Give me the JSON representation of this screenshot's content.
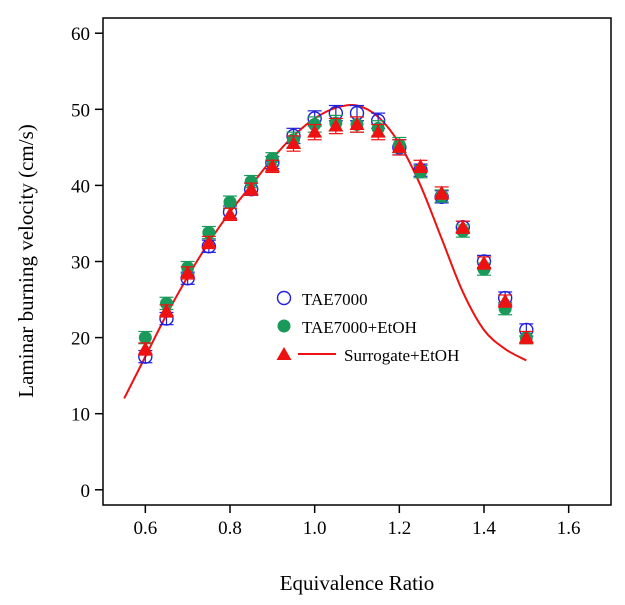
{
  "chart_data": {
    "type": "scatter",
    "title": "",
    "xlabel": "Equivalence Ratio",
    "ylabel": "Laminar burning velocity (cm/s)",
    "xlim": [
      0.5,
      1.7
    ],
    "ylim": [
      -2,
      62
    ],
    "x_ticks": [
      0.6,
      0.8,
      1.0,
      1.2,
      1.4,
      1.6
    ],
    "x_tick_labels": [
      "0.6",
      "0.8",
      "1.0",
      "1.2",
      "1.4",
      "1.6"
    ],
    "y_ticks": [
      0,
      10,
      20,
      30,
      40,
      50,
      60
    ],
    "y_tick_labels": [
      "0",
      "10",
      "20",
      "30",
      "40",
      "50",
      "60"
    ],
    "grid": false,
    "legend_position": "center",
    "series": [
      {
        "name": "TAE7000",
        "marker": "open-circle",
        "color": "#1f1fdf",
        "x": [
          0.6,
          0.65,
          0.7,
          0.75,
          0.8,
          0.85,
          0.9,
          0.95,
          1.0,
          1.05,
          1.1,
          1.15,
          1.2,
          1.25,
          1.3,
          1.35,
          1.4,
          1.45,
          1.5
        ],
        "y": [
          17.5,
          22.5,
          27.8,
          32.0,
          36.5,
          39.5,
          43.0,
          46.5,
          48.8,
          49.5,
          49.5,
          48.5,
          45.0,
          42.0,
          38.5,
          34.5,
          30.0,
          25.2,
          21.0
        ],
        "err": [
          0.8,
          0.8,
          0.8,
          0.8,
          0.8,
          0.8,
          0.8,
          1.0,
          1.0,
          1.0,
          1.0,
          1.0,
          1.0,
          0.8,
          0.8,
          0.8,
          0.8,
          0.8,
          0.8
        ]
      },
      {
        "name": "TAE7000+EtOH",
        "marker": "filled-circle",
        "color": "#1a9a5a",
        "x": [
          0.6,
          0.65,
          0.7,
          0.75,
          0.8,
          0.85,
          0.9,
          0.95,
          1.0,
          1.05,
          1.1,
          1.15,
          1.2,
          1.25,
          1.3,
          1.35,
          1.4,
          1.45,
          1.5
        ],
        "y": [
          20.0,
          24.5,
          29.2,
          33.8,
          37.8,
          40.5,
          43.5,
          46.0,
          48.0,
          48.2,
          48.0,
          47.5,
          45.3,
          41.8,
          38.6,
          34.0,
          29.0,
          23.8,
          20.0
        ],
        "err": [
          0.8,
          0.8,
          0.8,
          0.8,
          0.8,
          0.8,
          0.8,
          1.0,
          1.0,
          1.0,
          1.0,
          1.0,
          1.0,
          0.8,
          0.8,
          0.8,
          0.8,
          0.8,
          0.8
        ]
      },
      {
        "name": "Surrogate+EtOH",
        "marker": "filled-triangle",
        "color": "#ee1111",
        "x": [
          0.6,
          0.65,
          0.7,
          0.75,
          0.8,
          0.85,
          0.9,
          0.95,
          1.0,
          1.05,
          1.1,
          1.15,
          1.2,
          1.25,
          1.3,
          1.35,
          1.4,
          1.45,
          1.5
        ],
        "y": [
          18.5,
          23.5,
          28.5,
          32.5,
          36.2,
          39.5,
          42.5,
          45.5,
          47.0,
          47.8,
          48.0,
          47.0,
          45.0,
          42.5,
          39.0,
          34.5,
          29.8,
          24.8,
          20.0
        ],
        "err": [
          0.8,
          0.8,
          0.8,
          0.8,
          0.8,
          0.8,
          0.8,
          1.0,
          1.0,
          1.0,
          1.0,
          1.0,
          1.0,
          0.8,
          0.8,
          0.8,
          0.8,
          0.8,
          0.8
        ]
      }
    ],
    "model_curve": {
      "series_name": "Surrogate+EtOH",
      "style": "line",
      "color": "#ee1111",
      "x": [
        0.55,
        0.6,
        0.65,
        0.7,
        0.75,
        0.8,
        0.85,
        0.9,
        0.95,
        1.0,
        1.05,
        1.1,
        1.15,
        1.2,
        1.25,
        1.3,
        1.35,
        1.4,
        1.45,
        1.5
      ],
      "y": [
        12.0,
        17.5,
        23.0,
        28.0,
        32.5,
        36.5,
        40.0,
        43.5,
        46.5,
        48.8,
        50.2,
        50.5,
        49.0,
        45.5,
        40.0,
        33.0,
        26.0,
        21.0,
        18.5,
        17.0
      ]
    }
  }
}
